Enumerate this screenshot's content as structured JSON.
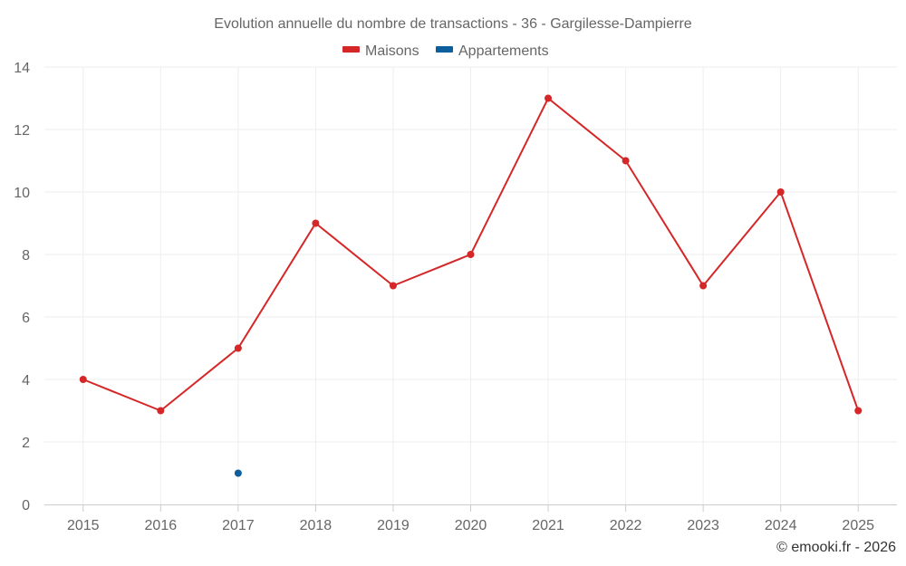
{
  "chart_data": {
    "type": "line",
    "title": "Evolution annuelle du nombre de transactions - 36 - Gargilesse-Dampierre",
    "categories": [
      "2015",
      "2016",
      "2017",
      "2018",
      "2019",
      "2020",
      "2021",
      "2022",
      "2023",
      "2024",
      "2025"
    ],
    "series": [
      {
        "name": "Maisons",
        "color": "#d62728",
        "values": [
          4,
          3,
          5,
          9,
          7,
          8,
          13,
          11,
          7,
          10,
          3
        ]
      },
      {
        "name": "Appartements",
        "color": "#0d5e9c",
        "values": [
          null,
          null,
          1,
          null,
          null,
          null,
          null,
          null,
          null,
          null,
          null
        ]
      }
    ],
    "ylim": [
      0,
      14
    ],
    "yticks": [
      0,
      2,
      4,
      6,
      8,
      10,
      12,
      14
    ],
    "xlabel": "",
    "ylabel": "",
    "grid": true,
    "legend_position": "top-center"
  },
  "credit": "© emooki.fr - 2026"
}
